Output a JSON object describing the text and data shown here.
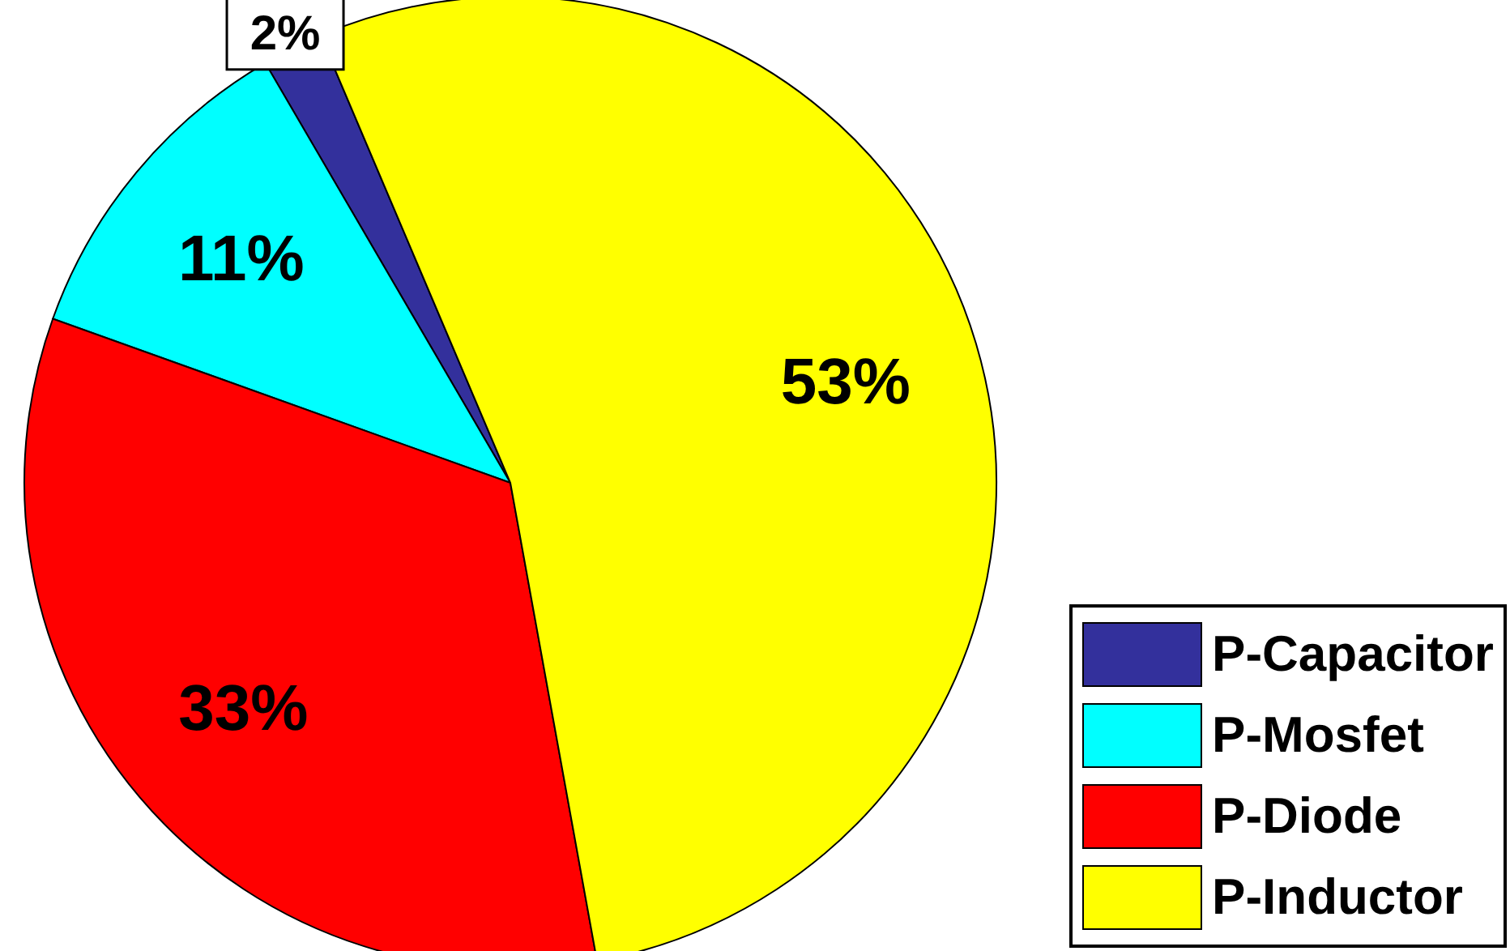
{
  "chart_data": {
    "type": "pie",
    "categories": [
      "P-Capacitor",
      "P-Mosfet",
      "P-Diode",
      "P-Inductor"
    ],
    "values": [
      2,
      11,
      33,
      53
    ],
    "colors": [
      "#33309c",
      "#00ffff",
      "#ff0000",
      "#ffff00"
    ],
    "value_labels": [
      "2%",
      "11%",
      "33%",
      "53%"
    ],
    "legend": "bottom right"
  }
}
